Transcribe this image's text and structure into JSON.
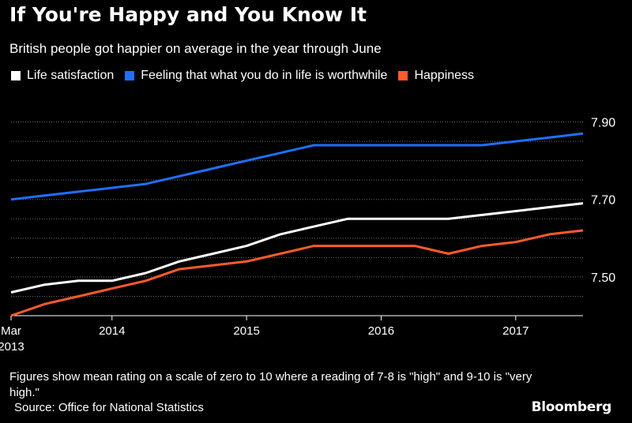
{
  "chart_data": {
    "type": "line",
    "title": "If You're Happy and You Know It",
    "subtitle": "British people got happier on average in the year through June",
    "x_tick_labels": [
      {
        "x": 2013.25,
        "label": "Mar",
        "sublabel": "2013"
      },
      {
        "x": 2014.0,
        "label": "2014"
      },
      {
        "x": 2015.0,
        "label": "2015"
      },
      {
        "x": 2016.0,
        "label": "2016"
      },
      {
        "x": 2017.0,
        "label": "2017"
      }
    ],
    "xlim": [
      2013.25,
      2017.5
    ],
    "ylim": [
      7.4,
      7.95
    ],
    "y_ticks": [
      7.5,
      7.7,
      7.9
    ],
    "y_tick_labels": [
      "7.50",
      "7.70",
      "7.90"
    ],
    "y_gridlines": [
      7.4,
      7.45,
      7.5,
      7.55,
      7.6,
      7.65,
      7.7,
      7.75,
      7.8,
      7.85,
      7.9
    ],
    "y_axis_side": "right",
    "grid": "horizontal dotted",
    "legend_position": "top-left",
    "series": [
      {
        "name": "Life satisfaction",
        "color": "#ffffff",
        "points": [
          [
            2013.25,
            7.46
          ],
          [
            2013.5,
            7.48
          ],
          [
            2013.75,
            7.49
          ],
          [
            2014.0,
            7.49
          ],
          [
            2014.25,
            7.51
          ],
          [
            2014.5,
            7.54
          ],
          [
            2014.75,
            7.56
          ],
          [
            2015.0,
            7.58
          ],
          [
            2015.25,
            7.61
          ],
          [
            2015.5,
            7.63
          ],
          [
            2015.75,
            7.65
          ],
          [
            2016.0,
            7.65
          ],
          [
            2016.25,
            7.65
          ],
          [
            2016.5,
            7.65
          ],
          [
            2016.75,
            7.66
          ],
          [
            2017.0,
            7.67
          ],
          [
            2017.25,
            7.68
          ],
          [
            2017.5,
            7.69
          ]
        ]
      },
      {
        "name": "Feeling that what you do in life is worthwhile",
        "color": "#1f6fff",
        "points": [
          [
            2013.25,
            7.7
          ],
          [
            2013.5,
            7.71
          ],
          [
            2013.75,
            7.72
          ],
          [
            2014.0,
            7.73
          ],
          [
            2014.25,
            7.74
          ],
          [
            2014.5,
            7.76
          ],
          [
            2014.75,
            7.78
          ],
          [
            2015.0,
            7.8
          ],
          [
            2015.25,
            7.82
          ],
          [
            2015.5,
            7.84
          ],
          [
            2015.75,
            7.84
          ],
          [
            2016.0,
            7.84
          ],
          [
            2016.25,
            7.84
          ],
          [
            2016.5,
            7.84
          ],
          [
            2016.75,
            7.84
          ],
          [
            2017.0,
            7.85
          ],
          [
            2017.25,
            7.86
          ],
          [
            2017.5,
            7.87
          ]
        ]
      },
      {
        "name": "Happiness",
        "color": "#ff5a2a",
        "points": [
          [
            2013.25,
            7.4
          ],
          [
            2013.5,
            7.43
          ],
          [
            2013.75,
            7.45
          ],
          [
            2014.0,
            7.47
          ],
          [
            2014.25,
            7.49
          ],
          [
            2014.5,
            7.52
          ],
          [
            2014.75,
            7.53
          ],
          [
            2015.0,
            7.54
          ],
          [
            2015.25,
            7.56
          ],
          [
            2015.5,
            7.58
          ],
          [
            2015.75,
            7.58
          ],
          [
            2016.0,
            7.58
          ],
          [
            2016.25,
            7.58
          ],
          [
            2016.5,
            7.56
          ],
          [
            2016.75,
            7.58
          ],
          [
            2017.0,
            7.59
          ],
          [
            2017.25,
            7.61
          ],
          [
            2017.5,
            7.62
          ]
        ]
      }
    ]
  },
  "footnote": "Figures show mean rating on a scale of zero to 10 where a reading of 7-8 is \"high\" and 9-10 is \"very high.\"",
  "source": "Source: Office for National Statistics",
  "brand": "Bloomberg"
}
